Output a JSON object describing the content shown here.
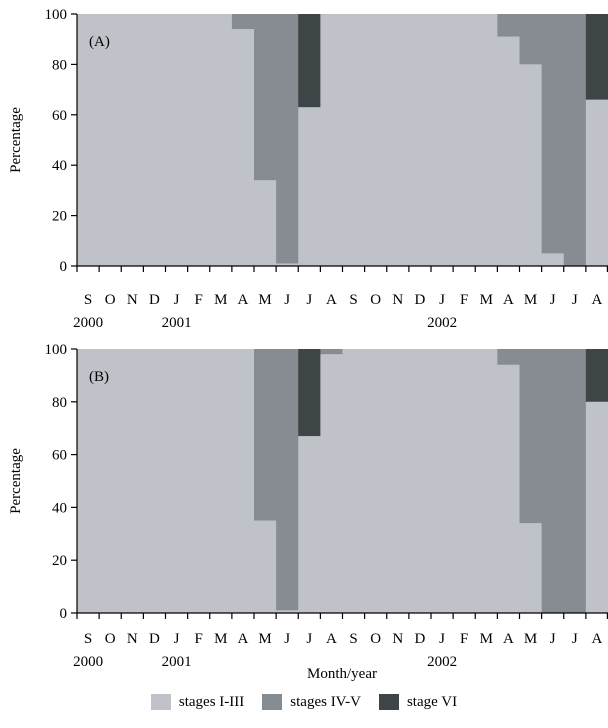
{
  "colors": {
    "stages_I_III": "#c0c2c9",
    "stages_IV_V": "#878c93",
    "stage_VI": "#3d4547"
  },
  "chart_data": [
    {
      "type": "bar",
      "stacked": true,
      "panel_label": "(A)",
      "ylabel": "Percentage",
      "xlabel": "",
      "ylim": [
        0,
        100
      ],
      "yticks": [
        0,
        20,
        40,
        60,
        80,
        100
      ],
      "categories": [
        "S",
        "O",
        "N",
        "D",
        "J",
        "F",
        "M",
        "A",
        "M",
        "J",
        "J",
        "A",
        "S",
        "O",
        "N",
        "D",
        "J",
        "F",
        "M",
        "A",
        "M",
        "J",
        "J",
        "A"
      ],
      "year_labels": [
        {
          "label": "2000",
          "index": 0
        },
        {
          "label": "2001",
          "index": 4
        },
        {
          "label": "2002",
          "index": 16
        }
      ],
      "series": [
        {
          "name": "stages I-III",
          "values": [
            100,
            100,
            100,
            100,
            100,
            100,
            100,
            94,
            34,
            1,
            63,
            100,
            100,
            100,
            100,
            100,
            100,
            100,
            100,
            91,
            80,
            5,
            0,
            66
          ]
        },
        {
          "name": "stages IV-V",
          "values": [
            0,
            0,
            0,
            0,
            0,
            0,
            0,
            6,
            66,
            99,
            0,
            0,
            0,
            0,
            0,
            0,
            0,
            0,
            0,
            9,
            20,
            95,
            100,
            0
          ]
        },
        {
          "name": "stage VI",
          "values": [
            0,
            0,
            0,
            0,
            0,
            0,
            0,
            0,
            0,
            0,
            37,
            0,
            0,
            0,
            0,
            0,
            0,
            0,
            0,
            0,
            0,
            0,
            0,
            34
          ]
        }
      ]
    },
    {
      "type": "bar",
      "stacked": true,
      "panel_label": "(B)",
      "ylabel": "Percentage",
      "xlabel": "Month/year",
      "ylim": [
        0,
        100
      ],
      "yticks": [
        0,
        20,
        40,
        60,
        80,
        100
      ],
      "categories": [
        "S",
        "O",
        "N",
        "D",
        "J",
        "F",
        "M",
        "A",
        "M",
        "J",
        "J",
        "A",
        "S",
        "O",
        "N",
        "D",
        "J",
        "F",
        "M",
        "A",
        "M",
        "J",
        "J",
        "A"
      ],
      "year_labels": [
        {
          "label": "2000",
          "index": 0
        },
        {
          "label": "2001",
          "index": 4
        },
        {
          "label": "2002",
          "index": 16
        }
      ],
      "series": [
        {
          "name": "stages I-III",
          "values": [
            100,
            100,
            100,
            100,
            100,
            100,
            100,
            100,
            35,
            1,
            67,
            98,
            100,
            100,
            100,
            100,
            100,
            100,
            100,
            94,
            34,
            0,
            0,
            80
          ]
        },
        {
          "name": "stages IV-V",
          "values": [
            0,
            0,
            0,
            0,
            0,
            0,
            0,
            0,
            65,
            99,
            0,
            2,
            0,
            0,
            0,
            0,
            0,
            0,
            0,
            6,
            66,
            100,
            100,
            0
          ]
        },
        {
          "name": "stage VI",
          "values": [
            0,
            0,
            0,
            0,
            0,
            0,
            0,
            0,
            0,
            0,
            33,
            0,
            0,
            0,
            0,
            0,
            0,
            0,
            0,
            0,
            0,
            0,
            0,
            20
          ]
        }
      ]
    }
  ],
  "legend": {
    "items": [
      {
        "label": "stages I-III",
        "color_key": "stages_I_III"
      },
      {
        "label": "stages IV-V",
        "color_key": "stages_IV_V"
      },
      {
        "label": "stage VI",
        "color_key": "stage_VI"
      }
    ]
  }
}
